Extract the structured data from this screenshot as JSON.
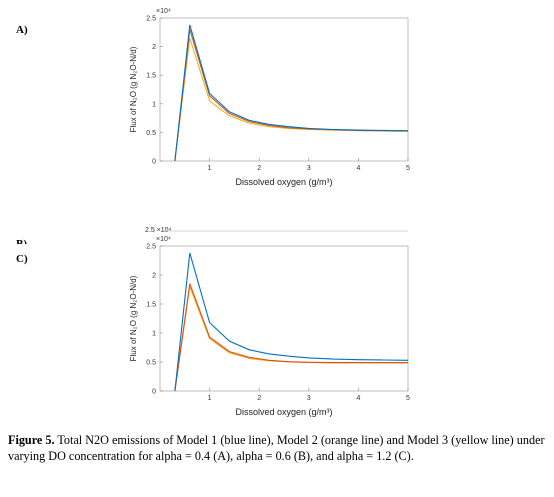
{
  "panels": {
    "a_label": "A)",
    "b_label": "B)",
    "c_label": "C)"
  },
  "caption": {
    "lead": "Figure 5.",
    "text": "Total N2O emissions of Model 1 (blue line), Model 2 (orange line) and Model 3 (yellow line) under varying DO concentration for alpha = 0.4 (A), alpha = 0.6 (B), and alpha = 1.2 (C)."
  },
  "colors": {
    "model1": "#0072BD",
    "model2": "#D95319",
    "model3": "#EDB120"
  },
  "chart_data": [
    {
      "panel": "A",
      "type": "line",
      "xlabel": "Dissolved oxygen (g/m³)",
      "ylabel": "Flux of N₂O (g N₂O-N/d)",
      "y_multiplier": "×10⁴",
      "xlim": [
        0,
        5
      ],
      "ylim": [
        0,
        2.5
      ],
      "xticks": [
        "1",
        "2",
        "3",
        "4",
        "5"
      ],
      "yticks": [
        "0",
        "0.5",
        "1",
        "1.5",
        "2",
        "2.5"
      ],
      "x": [
        0.3,
        0.6,
        1.0,
        1.4,
        1.8,
        2.2,
        2.6,
        3.0,
        3.5,
        4.0,
        4.5,
        5.0
      ],
      "series": [
        {
          "values": [
            0,
            2.38,
            1.18,
            0.86,
            0.71,
            0.64,
            0.6,
            0.57,
            0.55,
            0.54,
            0.535,
            0.53
          ]
        },
        {
          "values": [
            0,
            2.3,
            1.14,
            0.83,
            0.69,
            0.62,
            0.58,
            0.56,
            0.545,
            0.535,
            0.53,
            0.525
          ]
        },
        {
          "values": [
            0,
            2.15,
            1.05,
            0.79,
            0.66,
            0.6,
            0.57,
            0.55,
            0.54,
            0.53,
            0.525,
            0.52
          ]
        }
      ]
    },
    {
      "panel": "C",
      "type": "line",
      "xlabel": "Dissolved oxygen (g/m³)",
      "ylabel": "Flux of N₂O (g N₂O-N/d)",
      "y_multiplier": "×10⁴",
      "xlim": [
        0,
        5
      ],
      "ylim": [
        0,
        2.5
      ],
      "xticks": [
        "1",
        "2",
        "3",
        "4",
        "5"
      ],
      "yticks": [
        "0",
        "0.5",
        "1",
        "1.5",
        "2",
        "2.5"
      ],
      "x": [
        0.3,
        0.6,
        1.0,
        1.4,
        1.8,
        2.2,
        2.6,
        3.0,
        3.5,
        4.0,
        4.5,
        5.0
      ],
      "series": [
        {
          "values": [
            0,
            2.38,
            1.18,
            0.86,
            0.71,
            0.64,
            0.6,
            0.57,
            0.55,
            0.54,
            0.535,
            0.53
          ]
        },
        {
          "values": [
            0,
            1.85,
            0.93,
            0.68,
            0.58,
            0.53,
            0.505,
            0.495,
            0.49,
            0.49,
            0.49,
            0.49
          ]
        },
        {
          "values": [
            0,
            1.8,
            0.9,
            0.66,
            0.56,
            0.52,
            0.5,
            0.49,
            0.485,
            0.485,
            0.485,
            0.485
          ]
        }
      ]
    }
  ]
}
